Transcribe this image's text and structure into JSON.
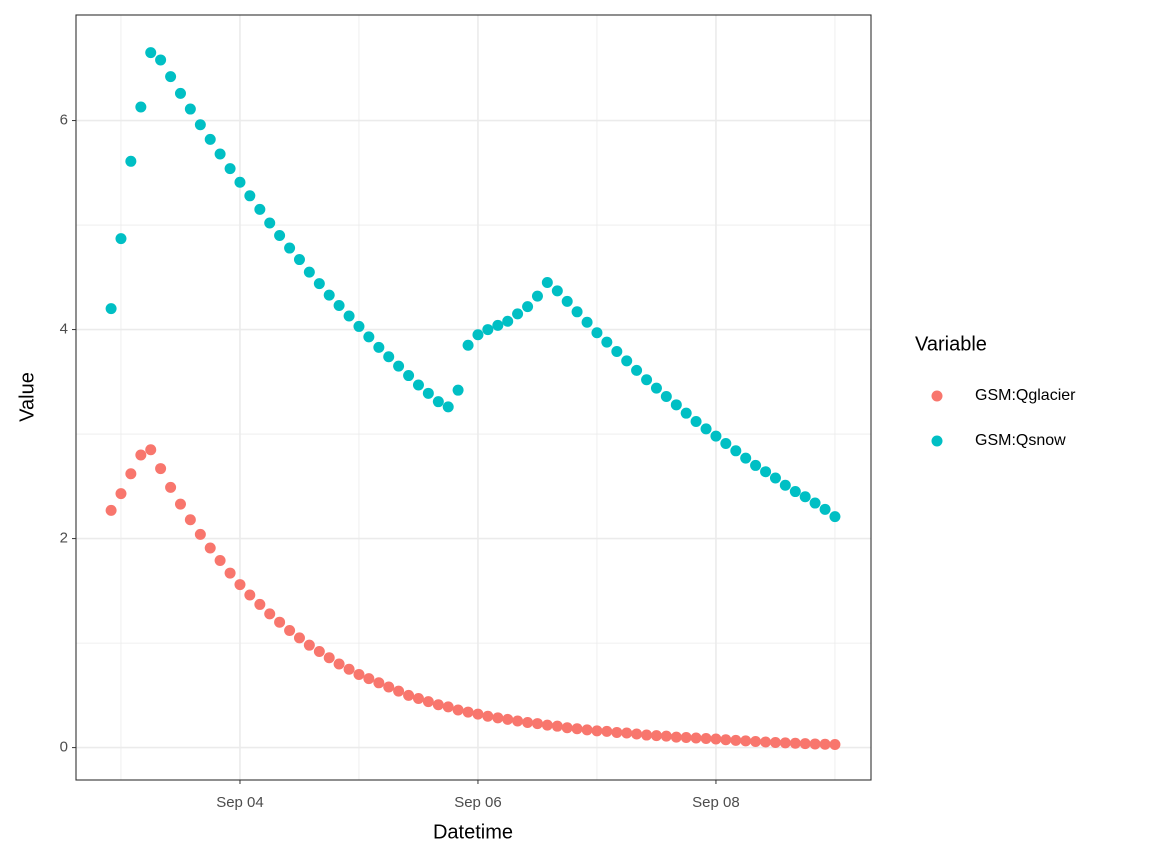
{
  "chart_data": {
    "type": "scatter",
    "x_label": "Datetime",
    "y_label": "Value",
    "legend_title": "Variable",
    "x": [
      2.917,
      3,
      3.083,
      3.167,
      3.25,
      3.333,
      3.417,
      3.5,
      3.583,
      3.667,
      3.75,
      3.833,
      3.917,
      4,
      4.083,
      4.167,
      4.25,
      4.333,
      4.417,
      4.5,
      4.583,
      4.667,
      4.75,
      4.833,
      4.917,
      5,
      5.083,
      5.167,
      5.25,
      5.333,
      5.417,
      5.5,
      5.583,
      5.667,
      5.75,
      5.833,
      5.917,
      6,
      6.083,
      6.167,
      6.25,
      6.333,
      6.417,
      6.5,
      6.583,
      6.667,
      6.75,
      6.833,
      6.917,
      7,
      7.083,
      7.167,
      7.25,
      7.333,
      7.417,
      7.5,
      7.583,
      7.667,
      7.75,
      7.833,
      7.917,
      8,
      8.083,
      8.167,
      8.25,
      8.333,
      8.417,
      8.5,
      8.583,
      8.667,
      8.75,
      8.833,
      8.917,
      9
    ],
    "series": [
      {
        "name": "GSM:Qglacier",
        "color": "#F8766D",
        "values": [
          2.27,
          2.43,
          2.62,
          2.8,
          2.85,
          2.67,
          2.49,
          2.33,
          2.18,
          2.04,
          1.91,
          1.79,
          1.67,
          1.56,
          1.46,
          1.37,
          1.28,
          1.2,
          1.12,
          1.05,
          0.98,
          0.92,
          0.86,
          0.8,
          0.75,
          0.7,
          0.66,
          0.62,
          0.58,
          0.54,
          0.5,
          0.47,
          0.44,
          0.41,
          0.39,
          0.36,
          0.34,
          0.32,
          0.3,
          0.285,
          0.27,
          0.255,
          0.24,
          0.23,
          0.215,
          0.205,
          0.19,
          0.18,
          0.17,
          0.16,
          0.155,
          0.145,
          0.14,
          0.13,
          0.12,
          0.115,
          0.11,
          0.1,
          0.097,
          0.092,
          0.087,
          0.082,
          0.075,
          0.069,
          0.064,
          0.058,
          0.054,
          0.049,
          0.045,
          0.042,
          0.038,
          0.035,
          0.032,
          0.03
        ]
      },
      {
        "name": "GSM:Qsnow",
        "color": "#00BFC4",
        "values": [
          4.2,
          4.87,
          5.61,
          6.13,
          6.65,
          6.58,
          6.42,
          6.26,
          6.11,
          5.96,
          5.82,
          5.68,
          5.54,
          5.41,
          5.28,
          5.15,
          5.02,
          4.9,
          4.78,
          4.67,
          4.55,
          4.44,
          4.33,
          4.23,
          4.13,
          4.03,
          3.93,
          3.83,
          3.74,
          3.65,
          3.56,
          3.47,
          3.39,
          3.31,
          3.26,
          3.42,
          3.85,
          3.95,
          4.0,
          4.04,
          4.08,
          4.15,
          4.22,
          4.32,
          4.45,
          4.37,
          4.27,
          4.17,
          4.07,
          3.97,
          3.88,
          3.79,
          3.7,
          3.61,
          3.52,
          3.44,
          3.36,
          3.28,
          3.2,
          3.12,
          3.05,
          2.98,
          2.91,
          2.84,
          2.77,
          2.7,
          2.64,
          2.58,
          2.51,
          2.45,
          2.4,
          2.34,
          2.28,
          2.21
        ]
      }
    ],
    "xlim": [
      2.622,
      9.303
    ],
    "ylim": [
      -0.31,
      7.01
    ],
    "xticks": [
      {
        "value": 4,
        "label": "Sep 04"
      },
      {
        "value": 6,
        "label": "Sep 06"
      },
      {
        "value": 8,
        "label": "Sep 08"
      }
    ],
    "yticks": [
      0,
      2,
      4,
      6
    ],
    "x_minor_ticks": [
      3,
      5,
      7,
      9
    ],
    "y_minor_ticks": [
      1,
      3,
      5
    ],
    "grid": true,
    "legend": "right"
  }
}
